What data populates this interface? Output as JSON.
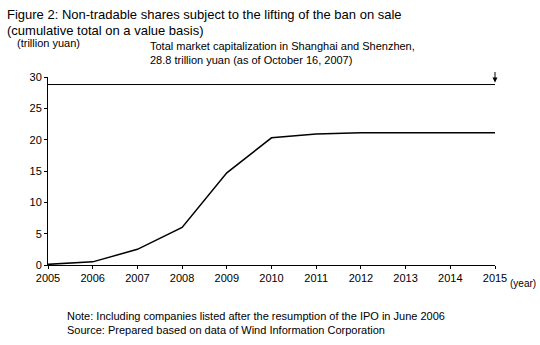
{
  "chart_data": {
    "type": "line",
    "title": "Figure 2: Non-tradable shares subject to the lifting of the ban on sale",
    "subtitle": "(cumulative total on a value basis)",
    "ylabel": "(trillion yuan)",
    "xlabel": "(year)",
    "x": [
      2005,
      2006,
      2007,
      2008,
      2009,
      2010,
      2011,
      2012,
      2013,
      2014,
      2015
    ],
    "values": [
      0.1,
      0.5,
      2.5,
      6.0,
      14.7,
      20.3,
      20.9,
      21.1,
      21.1,
      21.1,
      21.1
    ],
    "color": "#000000",
    "xlim": [
      2005,
      2015
    ],
    "xticks": [
      2005,
      2006,
      2007,
      2008,
      2009,
      2010,
      2011,
      2012,
      2013,
      2014,
      2015
    ],
    "ylim": [
      0,
      30
    ],
    "yticks": [
      0,
      5,
      10,
      15,
      20,
      25,
      30
    ],
    "grid": false,
    "reference_line": {
      "value": 28.8,
      "label": [
        "Total market capitalization in Shanghai and Shenzhen,",
        "28.8 trillion yuan (as of October 16, 2007)"
      ]
    },
    "notes": [
      "Note: Including companies listed after the resumption of the IPO in June 2006",
      "Source: Prepared based on data of Wind Information Corporation"
    ]
  }
}
